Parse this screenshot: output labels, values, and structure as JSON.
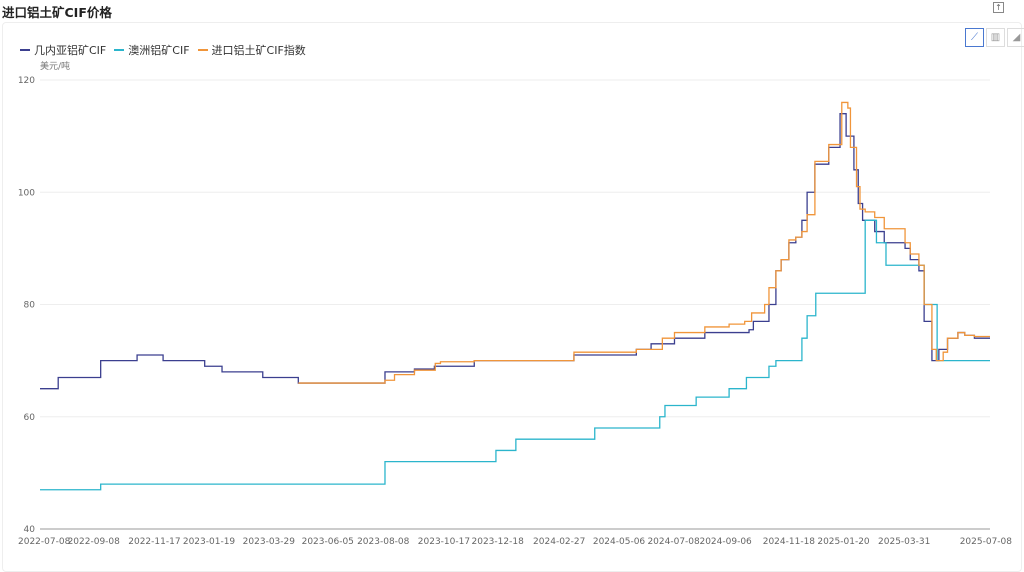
{
  "title": "进口铝土矿CIF价格",
  "toolbar": {
    "export_icon": "export-icon",
    "tools": [
      "line-chart-icon",
      "bar-chart-icon",
      "area-chart-icon"
    ]
  },
  "chart_data": {
    "type": "line",
    "title": "进口铝土矿CIF价格",
    "ylabel": "美元/吨",
    "ylim": [
      40,
      120
    ],
    "yticks": [
      40,
      60,
      80,
      100,
      120
    ],
    "xlim": [
      "2022-07-08",
      "2025-07-08"
    ],
    "xticks": [
      "2022-07-08",
      "2022-09-08",
      "2022-11-17",
      "2023-01-19",
      "2023-03-29",
      "2023-06-05",
      "2023-08-08",
      "2023-10-17",
      "2023-12-18",
      "2024-02-27",
      "2024-05-06",
      "2024-07-08",
      "2024-09-06",
      "2024-11-18",
      "2025-01-20",
      "2025-03-31",
      "2025-07-08"
    ],
    "grid": true,
    "legend": "top-left",
    "step": true,
    "series": [
      {
        "name": "几内亚铝矿CIF",
        "color": "#3b3f8f",
        "points": [
          [
            "2022-07-08",
            65
          ],
          [
            "2022-07-29",
            67
          ],
          [
            "2022-09-16",
            70
          ],
          [
            "2022-10-28",
            71
          ],
          [
            "2022-11-27",
            70
          ],
          [
            "2023-01-14",
            69
          ],
          [
            "2023-02-03",
            68
          ],
          [
            "2023-03-22",
            67
          ],
          [
            "2023-05-02",
            66
          ],
          [
            "2023-08-10",
            68
          ],
          [
            "2023-09-13",
            68.5
          ],
          [
            "2023-10-06",
            69
          ],
          [
            "2023-11-21",
            70
          ],
          [
            "2024-03-15",
            71
          ],
          [
            "2024-05-26",
            72
          ],
          [
            "2024-06-12",
            73
          ],
          [
            "2024-07-09",
            74
          ],
          [
            "2024-08-13",
            75
          ],
          [
            "2024-10-03",
            75.5
          ],
          [
            "2024-10-08",
            77
          ],
          [
            "2024-10-26",
            80
          ],
          [
            "2024-11-03",
            86
          ],
          [
            "2024-11-09",
            88
          ],
          [
            "2024-11-18",
            91
          ],
          [
            "2024-11-26",
            92
          ],
          [
            "2024-12-03",
            95
          ],
          [
            "2024-12-09",
            100
          ],
          [
            "2024-12-18",
            105
          ],
          [
            "2025-01-03",
            108
          ],
          [
            "2025-01-16",
            114
          ],
          [
            "2025-01-23",
            110
          ],
          [
            "2025-02-01",
            104
          ],
          [
            "2025-02-06",
            98
          ],
          [
            "2025-02-11",
            95
          ],
          [
            "2025-02-25",
            93
          ],
          [
            "2025-03-08",
            91
          ],
          [
            "2025-04-01",
            90
          ],
          [
            "2025-04-07",
            88
          ],
          [
            "2025-04-17",
            86
          ],
          [
            "2025-04-23",
            77
          ],
          [
            "2025-05-02",
            70
          ],
          [
            "2025-05-10",
            72
          ],
          [
            "2025-05-20",
            74
          ],
          [
            "2025-06-01",
            75
          ],
          [
            "2025-06-09",
            74.5
          ],
          [
            "2025-06-20",
            74
          ],
          [
            "2025-07-08",
            74
          ]
        ]
      },
      {
        "name": "澳洲铝矿CIF",
        "color": "#2bb5cc",
        "points": [
          [
            "2022-07-08",
            47
          ],
          [
            "2022-09-16",
            48
          ],
          [
            "2023-08-10",
            52
          ],
          [
            "2023-12-16",
            54
          ],
          [
            "2024-01-08",
            56
          ],
          [
            "2024-04-08",
            58
          ],
          [
            "2024-06-22",
            60
          ],
          [
            "2024-06-28",
            62
          ],
          [
            "2024-08-03",
            63.5
          ],
          [
            "2024-09-10",
            65
          ],
          [
            "2024-09-30",
            67
          ],
          [
            "2024-10-26",
            69
          ],
          [
            "2024-11-03",
            70
          ],
          [
            "2024-12-03",
            74
          ],
          [
            "2024-12-09",
            78
          ],
          [
            "2024-12-19",
            82
          ],
          [
            "2025-02-14",
            95
          ],
          [
            "2025-02-27",
            91
          ],
          [
            "2025-03-10",
            87
          ],
          [
            "2025-04-23",
            80
          ],
          [
            "2025-05-08",
            70
          ],
          [
            "2025-07-08",
            70
          ]
        ]
      },
      {
        "name": "进口铝土矿CIF指数",
        "color": "#f0953a",
        "points": [
          [
            "2023-05-02",
            66
          ],
          [
            "2023-08-10",
            66.5
          ],
          [
            "2023-08-21",
            67.5
          ],
          [
            "2023-09-13",
            68.3
          ],
          [
            "2023-10-07",
            69.5
          ],
          [
            "2023-10-13",
            69.8
          ],
          [
            "2023-11-21",
            70
          ],
          [
            "2024-03-15",
            71.5
          ],
          [
            "2024-05-26",
            72
          ],
          [
            "2024-06-25",
            74
          ],
          [
            "2024-07-09",
            75
          ],
          [
            "2024-08-13",
            76
          ],
          [
            "2024-09-10",
            76.5
          ],
          [
            "2024-09-28",
            77
          ],
          [
            "2024-10-06",
            78.5
          ],
          [
            "2024-10-21",
            80
          ],
          [
            "2024-10-26",
            83
          ],
          [
            "2024-11-03",
            86
          ],
          [
            "2024-11-09",
            88
          ],
          [
            "2024-11-18",
            91.5
          ],
          [
            "2024-11-26",
            92
          ],
          [
            "2024-12-03",
            93
          ],
          [
            "2024-12-09",
            96
          ],
          [
            "2024-12-18",
            105.5
          ],
          [
            "2025-01-03",
            108.5
          ],
          [
            "2025-01-18",
            116
          ],
          [
            "2025-01-25",
            115
          ],
          [
            "2025-01-28",
            108
          ],
          [
            "2025-02-04",
            101
          ],
          [
            "2025-02-08",
            97
          ],
          [
            "2025-02-14",
            96.5
          ],
          [
            "2025-02-25",
            95.5
          ],
          [
            "2025-03-08",
            93.5
          ],
          [
            "2025-04-01",
            91
          ],
          [
            "2025-04-07",
            89
          ],
          [
            "2025-04-17",
            87
          ],
          [
            "2025-04-23",
            80
          ],
          [
            "2025-05-02",
            72
          ],
          [
            "2025-05-07",
            70
          ],
          [
            "2025-05-15",
            71.5
          ],
          [
            "2025-05-20",
            74
          ],
          [
            "2025-06-01",
            75
          ],
          [
            "2025-06-09",
            74.5
          ],
          [
            "2025-06-20",
            74.3
          ],
          [
            "2025-07-08",
            74.3
          ]
        ]
      }
    ]
  }
}
